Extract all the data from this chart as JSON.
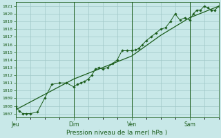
{
  "title": "",
  "xlabel": "Pression niveau de la mer( hPa )",
  "ylabel": "",
  "bg_color": "#c8e8e8",
  "grid_color": "#a0c8c8",
  "line_color": "#1a5c1a",
  "marker_color": "#1a5c1a",
  "ylim": [
    1006.5,
    1021.5
  ],
  "yticks": [
    1007,
    1008,
    1009,
    1010,
    1011,
    1012,
    1013,
    1014,
    1015,
    1016,
    1017,
    1018,
    1019,
    1020,
    1021
  ],
  "day_labels": [
    "Jeu",
    "Dim",
    "Ven",
    "Sam"
  ],
  "day_positions": [
    0,
    48,
    96,
    144
  ],
  "vline_positions": [
    0,
    48,
    96,
    144
  ],
  "series1_x": [
    0,
    3,
    6,
    9,
    12,
    18,
    24,
    30,
    36,
    42,
    48,
    51,
    54,
    57,
    60,
    63,
    66,
    69,
    72,
    76,
    80,
    84,
    88,
    92,
    96,
    99,
    102,
    105,
    108,
    112,
    116,
    120,
    124,
    128,
    132,
    136,
    140,
    144,
    147,
    150,
    153,
    156,
    159,
    162,
    165,
    168
  ],
  "series1_y": [
    1008.0,
    1007.3,
    1007.0,
    1007.0,
    1007.0,
    1007.2,
    1009.0,
    1010.8,
    1011.0,
    1011.0,
    1010.5,
    1010.8,
    1011.0,
    1011.2,
    1011.5,
    1012.0,
    1012.8,
    1013.0,
    1012.8,
    1013.0,
    1013.5,
    1014.0,
    1015.2,
    1015.2,
    1015.2,
    1015.3,
    1015.5,
    1016.0,
    1016.5,
    1017.0,
    1017.5,
    1018.0,
    1018.2,
    1019.0,
    1020.0,
    1019.2,
    1019.5,
    1019.2,
    1020.0,
    1020.5,
    1020.5,
    1021.0,
    1020.8,
    1020.5,
    1020.5,
    1021.0
  ],
  "series2_x": [
    0,
    24,
    48,
    72,
    96,
    120,
    144,
    168
  ],
  "series2_y": [
    1007.5,
    1009.5,
    1011.5,
    1013.0,
    1014.5,
    1017.2,
    1019.5,
    1021.0
  ],
  "xmax": 168,
  "minor_xticks": [
    12,
    24,
    36,
    60,
    72,
    84,
    108,
    120,
    132,
    156,
    168
  ],
  "figsize": [
    3.2,
    2.0
  ],
  "dpi": 100
}
